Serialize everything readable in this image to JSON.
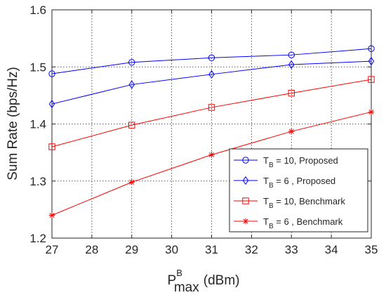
{
  "chart_data": {
    "type": "line",
    "xlabel_base": "P",
    "xlabel_sup": "B",
    "xlabel_sub": "max",
    "xlabel_unit": "(dBm)",
    "ylabel": "Sum Rate (bps/Hz)",
    "xlim": [
      27,
      35
    ],
    "ylim": [
      1.2,
      1.6
    ],
    "xticks": [
      27,
      28,
      29,
      30,
      31,
      32,
      33,
      34,
      35
    ],
    "yticks": [
      1.2,
      1.3,
      1.4,
      1.5,
      1.6
    ],
    "grid": true,
    "legend_position": "bottom-right",
    "x": [
      27,
      29,
      31,
      33,
      35
    ],
    "series": [
      {
        "name": "T_B = 10, Proposed",
        "legend_base": "T",
        "legend_sub": "B",
        "legend_text": " = 10, Proposed",
        "color": "#0000ff",
        "marker": "circle",
        "values": [
          1.488,
          1.508,
          1.516,
          1.521,
          1.532
        ]
      },
      {
        "name": "T_B = 6 , Proposed",
        "legend_base": "T",
        "legend_sub": "B",
        "legend_text": " = 6 , Proposed",
        "color": "#0000ff",
        "marker": "diamond",
        "values": [
          1.435,
          1.469,
          1.487,
          1.504,
          1.51
        ]
      },
      {
        "name": "T_B = 10, Benchmark",
        "legend_base": "T",
        "legend_sub": "B",
        "legend_text": " = 10, Benchmark",
        "color": "#ff0000",
        "marker": "square",
        "values": [
          1.36,
          1.398,
          1.429,
          1.454,
          1.478
        ]
      },
      {
        "name": "T_B = 6 , Benchmark",
        "legend_base": "T",
        "legend_sub": "B",
        "legend_text": " = 6 , Benchmark",
        "color": "#ff0000",
        "marker": "asterisk",
        "values": [
          1.24,
          1.298,
          1.346,
          1.387,
          1.421
        ]
      }
    ]
  }
}
